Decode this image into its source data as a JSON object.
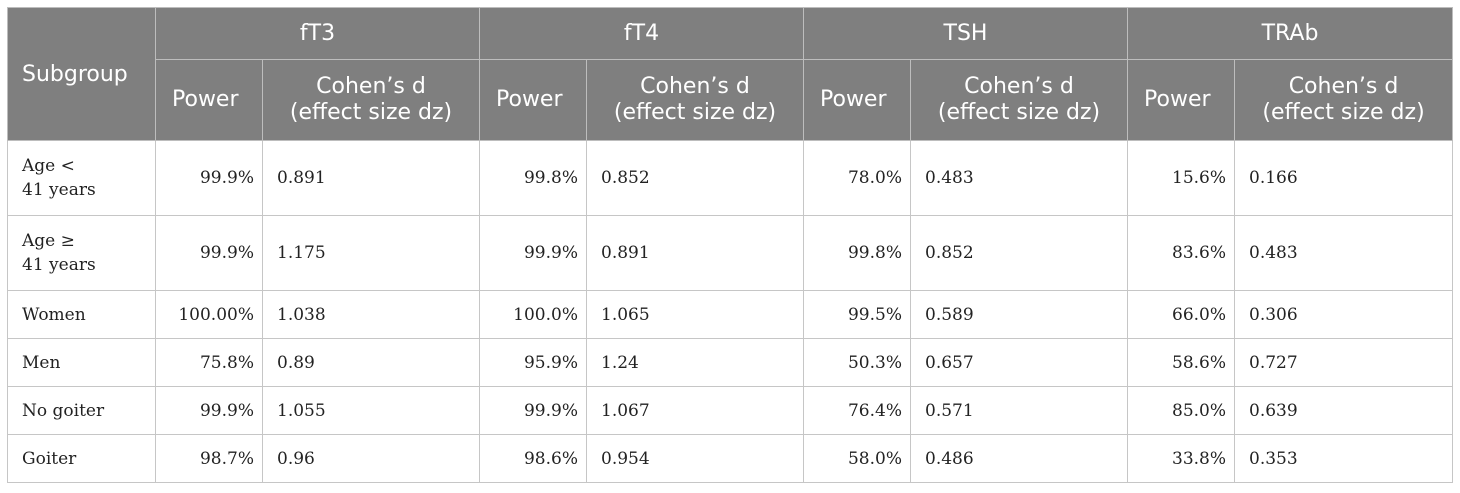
{
  "table": {
    "subgroup_header": "Subgroup",
    "groups": [
      "fT3",
      "fT4",
      "TSH",
      "TRAb"
    ],
    "power_label": "Power",
    "cohen_label_line1": "Cohen’s d",
    "cohen_label_line2": "(effect size dz)",
    "rows": [
      {
        "label_line1": "Age <",
        "label_line2": "41 years",
        "cells": [
          {
            "power": "99.9%",
            "d": "0.891"
          },
          {
            "power": "99.8%",
            "d": "0.852"
          },
          {
            "power": "78.0%",
            "d": "0.483"
          },
          {
            "power": "15.6%",
            "d": "0.166"
          }
        ]
      },
      {
        "label_line1": "Age ≥",
        "label_line2": "41 years",
        "cells": [
          {
            "power": "99.9%",
            "d": "1.175"
          },
          {
            "power": "99.9%",
            "d": "0.891"
          },
          {
            "power": "99.8%",
            "d": "0.852"
          },
          {
            "power": "83.6%",
            "d": "0.483"
          }
        ]
      },
      {
        "label_line1": "Women",
        "label_line2": "",
        "cells": [
          {
            "power": "100.00%",
            "d": "1.038"
          },
          {
            "power": "100.0%",
            "d": "1.065"
          },
          {
            "power": "99.5%",
            "d": "0.589"
          },
          {
            "power": "66.0%",
            "d": "0.306"
          }
        ]
      },
      {
        "label_line1": "Men",
        "label_line2": "",
        "cells": [
          {
            "power": "75.8%",
            "d": "0.89"
          },
          {
            "power": "95.9%",
            "d": "1.24"
          },
          {
            "power": "50.3%",
            "d": "0.657"
          },
          {
            "power": "58.6%",
            "d": "0.727"
          }
        ]
      },
      {
        "label_line1": "No goiter",
        "label_line2": "",
        "cells": [
          {
            "power": "99.9%",
            "d": "1.055"
          },
          {
            "power": "99.9%",
            "d": "1.067"
          },
          {
            "power": "76.4%",
            "d": "0.571"
          },
          {
            "power": "85.0%",
            "d": "0.639"
          }
        ]
      },
      {
        "label_line1": "Goiter",
        "label_line2": "",
        "cells": [
          {
            "power": "98.7%",
            "d": "0.96"
          },
          {
            "power": "98.6%",
            "d": "0.954"
          },
          {
            "power": "58.0%",
            "d": "0.486"
          },
          {
            "power": "33.8%",
            "d": "0.353"
          }
        ]
      }
    ]
  }
}
